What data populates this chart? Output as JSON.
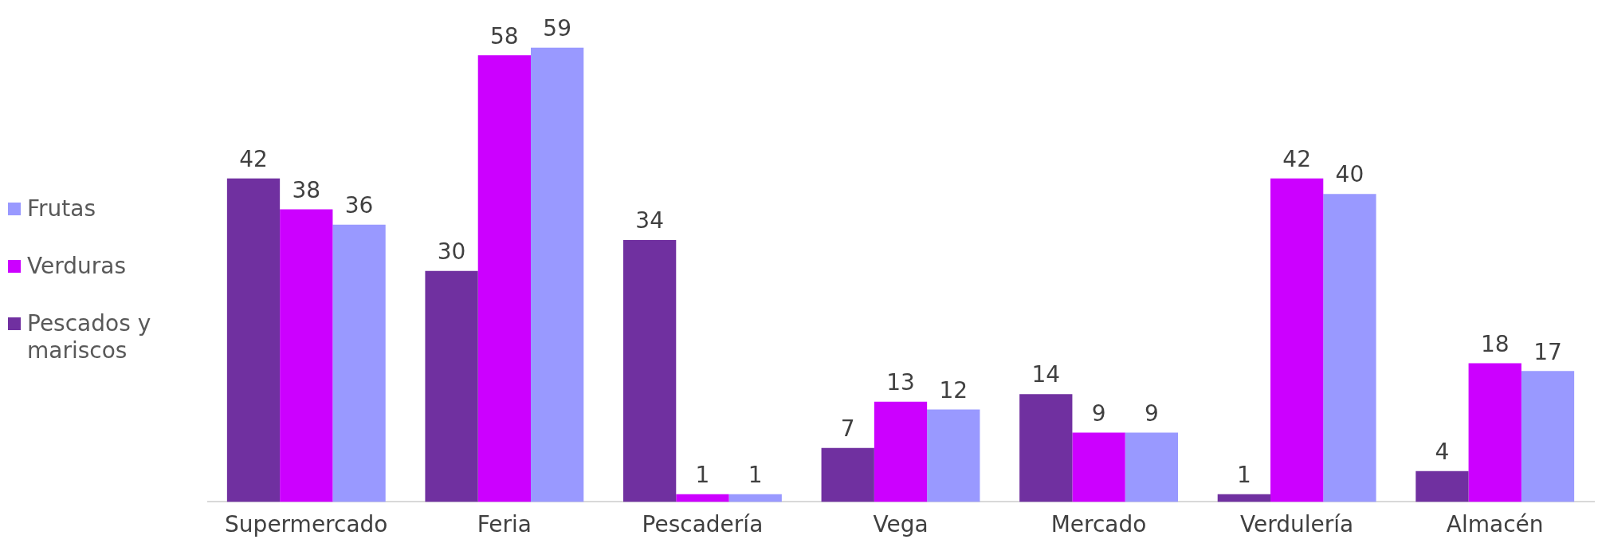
{
  "chart_data": {
    "type": "bar",
    "categories": [
      "Supermercado",
      "Feria",
      "Pescadería",
      "Vega",
      "Mercado",
      "Verdulería",
      "Almacén"
    ],
    "series": [
      {
        "name": "Pescados y mariscos",
        "color": "#7030a0",
        "values": [
          42,
          30,
          34,
          7,
          14,
          1,
          4
        ]
      },
      {
        "name": "Verduras",
        "color": "#cc00ff",
        "values": [
          38,
          58,
          1,
          13,
          9,
          42,
          18
        ]
      },
      {
        "name": "Frutas",
        "color": "#9999ff",
        "values": [
          36,
          59,
          1,
          12,
          9,
          40,
          17
        ]
      }
    ],
    "data_labels": true,
    "legend": "left"
  }
}
